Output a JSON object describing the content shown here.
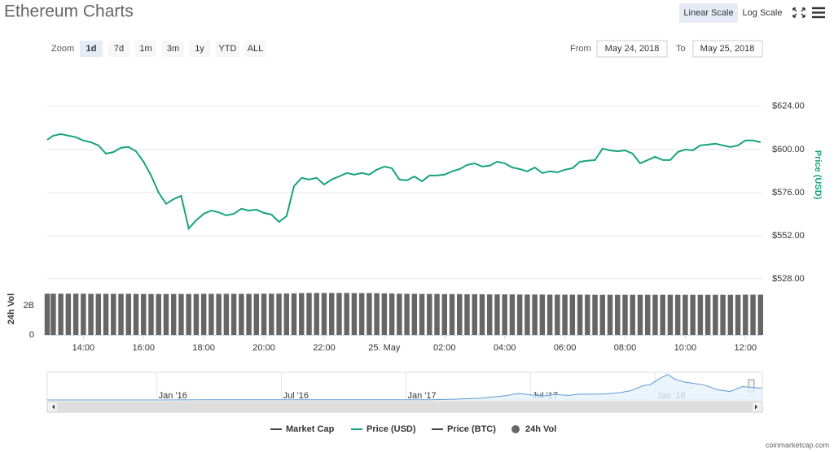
{
  "controls": {
    "title": "Ethereum Charts",
    "scale_buttons": [
      "Linear Scale",
      "Log Scale"
    ],
    "scale_selected": 0,
    "zoom_label": "Zoom",
    "zoom": [
      "1d",
      "7d",
      "1m",
      "3m",
      "1y",
      "YTD",
      "ALL"
    ],
    "zoom_selected": 0,
    "from_label": "From",
    "from": "May 24, 2018",
    "to_label": "To",
    "to": "May 25, 2018",
    "credit": "coinmarketcap.com"
  },
  "chart_data": {
    "type": "line",
    "y_label": "Price (USD)",
    "y2_label": "24h Vol",
    "x": [
      12.8,
      13,
      13.25,
      13.5,
      13.75,
      14,
      14.25,
      14.5,
      14.75,
      15,
      15.25,
      15.5,
      15.75,
      16,
      16.25,
      16.5,
      16.75,
      17,
      17.25,
      17.5,
      17.75,
      18,
      18.25,
      18.5,
      18.75,
      19,
      19.25,
      19.5,
      19.75,
      20,
      20.25,
      20.5,
      20.75,
      21,
      21.25,
      21.5,
      21.75,
      22,
      22.25,
      22.5,
      22.75,
      23,
      23.25,
      23.5,
      23.75,
      24,
      24.25,
      24.5,
      24.75,
      25,
      25.25,
      25.5,
      25.75,
      26,
      26.25,
      26.5,
      26.75,
      27,
      27.25,
      27.5,
      27.75,
      28,
      28.25,
      28.5,
      28.75,
      29,
      29.25,
      29.5,
      29.75,
      30,
      30.25,
      30.5,
      30.75,
      31,
      31.25,
      31.5,
      31.75,
      32,
      32.25,
      32.5,
      32.75,
      33,
      33.25,
      33.5,
      33.75,
      34,
      34.25,
      34.5,
      34.75,
      35,
      35.25,
      35.5,
      35.75,
      36,
      36.25,
      36.5
    ],
    "xlim": [
      12.8,
      36.56
    ],
    "xticks": [
      {
        "value": 14,
        "label": "14:00"
      },
      {
        "value": 16,
        "label": "16:00"
      },
      {
        "value": 18,
        "label": "18:00"
      },
      {
        "value": 20,
        "label": "20:00"
      },
      {
        "value": 22,
        "label": "22:00"
      },
      {
        "value": 24,
        "label": "25. May"
      },
      {
        "value": 26,
        "label": "02:00"
      },
      {
        "value": 28,
        "label": "04:00"
      },
      {
        "value": 30,
        "label": "06:00"
      },
      {
        "value": 32,
        "label": "08:00"
      },
      {
        "value": 34,
        "label": "10:00"
      },
      {
        "value": 36,
        "label": "12:00"
      }
    ],
    "ylim": [
      528,
      647
    ],
    "yticks": [
      {
        "value": 528,
        "label": "$528.00"
      },
      {
        "value": 552,
        "label": "$552.00"
      },
      {
        "value": 576,
        "label": "$576.00"
      },
      {
        "value": 600,
        "label": "$600.00"
      },
      {
        "value": 624,
        "label": "$624.00"
      }
    ],
    "y2lim": [
      0,
      3
    ],
    "y2ticks": [
      0,
      {
        "value": 2,
        "label": "2B"
      }
    ],
    "grid": true,
    "series": [
      {
        "name": "Market Cap",
        "color": "#434348",
        "visible": false
      },
      {
        "name": "Price (USD)",
        "color": "#17a37b",
        "visible": true,
        "values": [
          605.4,
          607.7,
          608.6,
          607.7,
          606.8,
          605,
          604,
          602.3,
          597.7,
          598.6,
          601,
          601.4,
          599,
          593.2,
          585.5,
          576,
          569.7,
          572.4,
          574.2,
          556,
          560.6,
          564.2,
          566,
          565,
          563.3,
          564.2,
          567,
          566,
          566.5,
          564.7,
          563.8,
          559.7,
          562.9,
          579.6,
          584.2,
          583.3,
          584.2,
          580.5,
          583.3,
          585,
          586.9,
          586,
          586.9,
          586,
          588.7,
          590.5,
          589.6,
          583.3,
          582.8,
          585,
          582.3,
          585.5,
          585.5,
          586,
          587.8,
          589.1,
          591.4,
          592.3,
          590.5,
          591,
          593.2,
          592.3,
          590,
          589.1,
          587.8,
          590,
          586.9,
          587.8,
          587.3,
          588.7,
          589.6,
          593.2,
          593.7,
          594.1,
          600.5,
          599.5,
          599,
          599.5,
          597.7,
          592.3,
          594.1,
          595.9,
          594.1,
          594.1,
          598.6,
          600,
          599.5,
          602.3,
          602.7,
          603.2,
          602.3,
          601.4,
          602.3,
          605,
          605,
          604
        ]
      },
      {
        "name": "Price (BTC)",
        "color": "#434348",
        "visible": false
      },
      {
        "name": "24h Vol",
        "color": "#666666",
        "visible": true,
        "axis": "y2",
        "marker": "circle",
        "values": [
          2.82,
          2.82,
          2.82,
          2.82,
          2.82,
          2.82,
          2.81,
          2.81,
          2.81,
          2.81,
          2.81,
          2.81,
          2.8,
          2.8,
          2.8,
          2.8,
          2.8,
          2.8,
          2.8,
          2.8,
          2.8,
          2.81,
          2.81,
          2.81,
          2.81,
          2.81,
          2.81,
          2.81,
          2.81,
          2.82,
          2.82,
          2.82,
          2.83,
          2.84,
          2.86,
          2.87,
          2.87,
          2.87,
          2.87,
          2.87,
          2.87,
          2.86,
          2.86,
          2.86,
          2.85,
          2.84,
          2.83,
          2.82,
          2.81,
          2.81,
          2.8,
          2.8,
          2.8,
          2.79,
          2.79,
          2.79,
          2.78,
          2.78,
          2.78,
          2.77,
          2.77,
          2.77,
          2.77,
          2.76,
          2.76,
          2.76,
          2.76,
          2.75,
          2.75,
          2.75,
          2.75,
          2.75,
          2.75,
          2.74,
          2.74,
          2.74,
          2.74,
          2.74,
          2.74,
          2.74,
          2.74,
          2.74,
          2.74,
          2.74,
          2.74,
          2.74,
          2.74,
          2.74,
          2.74,
          2.74,
          2.74,
          2.74,
          2.74,
          2.75,
          2.75,
          2.75
        ]
      }
    ],
    "navigator": {
      "color": "#5b9bd5",
      "fill": "#e6f0fa",
      "x": [
        2015.56,
        2015.7,
        2015.85,
        2016,
        2016.1,
        2016.2,
        2016.3,
        2016.45,
        2016.55,
        2016.7,
        2016.85,
        2017,
        2017.1,
        2017.2,
        2017.3,
        2017.4,
        2017.45,
        2017.5,
        2017.55,
        2017.6,
        2017.65,
        2017.7,
        2017.75,
        2017.8,
        2017.85,
        2017.9,
        2017.95,
        2017.98,
        2018.02,
        2018.05,
        2018.08,
        2018.12,
        2018.15,
        2018.2,
        2018.25,
        2018.3,
        2018.35,
        2018.4,
        2018.43
      ],
      "values": [
        1,
        1,
        1,
        1,
        5,
        11,
        10,
        14,
        11,
        12,
        10,
        8,
        12,
        40,
        90,
        220,
        330,
        260,
        200,
        280,
        230,
        300,
        290,
        310,
        360,
        460,
        720,
        780,
        1100,
        1300,
        1050,
        900,
        850,
        750,
        520,
        430,
        680,
        620,
        600
      ],
      "xlim": [
        2015.56,
        2018.43
      ],
      "ylim": [
        0,
        1400
      ],
      "xticks": [
        {
          "value": 2016,
          "label": "Jan '16"
        },
        {
          "value": 2016.5,
          "label": "Jul '16"
        },
        {
          "value": 2017,
          "label": "Jan '17"
        },
        {
          "value": 2017.5,
          "label": "Jul '17"
        },
        {
          "value": 2018,
          "label": "Jan '18"
        }
      ]
    }
  }
}
